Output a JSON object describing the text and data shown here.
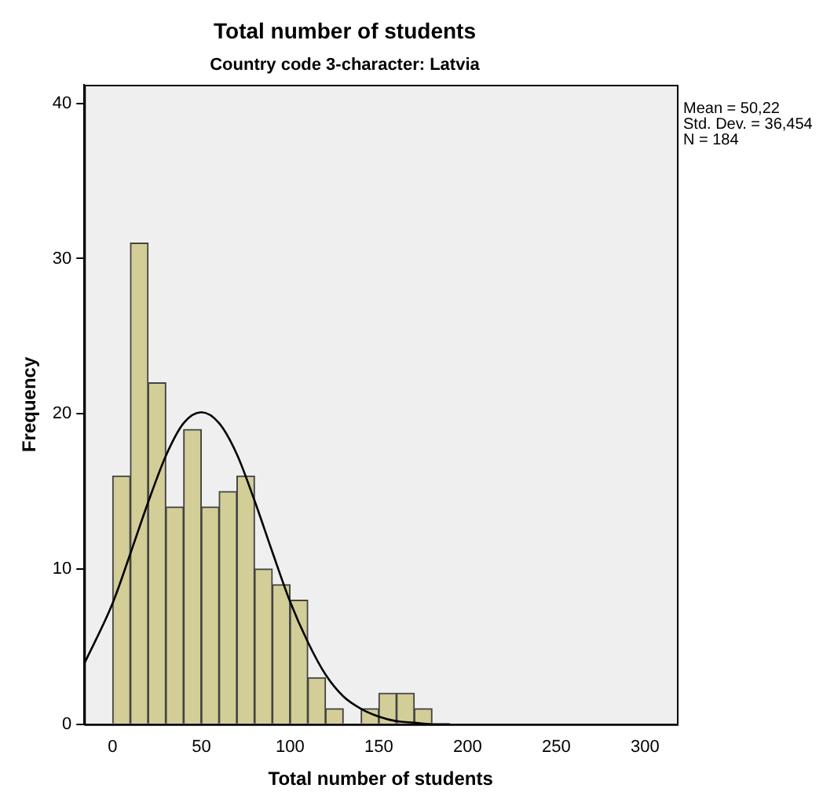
{
  "chart_data": {
    "type": "histogram",
    "title": "Total number of students",
    "subtitle": "Country code 3-character: Latvia",
    "xlabel": "Total number of students",
    "ylabel": "Frequency",
    "bins": [
      0,
      10,
      20,
      30,
      40,
      50,
      60,
      70,
      80,
      90,
      100,
      110,
      120,
      130,
      140,
      150,
      160,
      170,
      180
    ],
    "values": [
      16,
      31,
      22,
      14,
      19,
      14,
      15,
      16,
      10,
      9,
      8,
      3,
      1,
      0,
      1,
      2,
      2,
      1
    ],
    "color": "#d3ce97",
    "series": [
      {
        "type": "line",
        "color": "#000000",
        "marker": "none",
        "x": [
          -16,
          0,
          10,
          20,
          30,
          40,
          50,
          60,
          70,
          80,
          90,
          100,
          110,
          120,
          130,
          140,
          150,
          160,
          170,
          180,
          190
        ],
        "values": [
          3.9,
          7.8,
          11,
          14.3,
          17.3,
          19.4,
          20.1,
          19.4,
          17.4,
          14.4,
          11.1,
          7.9,
          5.3,
          3.2,
          1.8,
          1,
          0.5,
          0.2,
          0.1,
          0,
          0
        ]
      }
    ],
    "xlim": [
      -16,
      318
    ],
    "xticks": [
      0,
      50,
      100,
      150,
      200,
      250,
      300
    ],
    "ylim": [
      0,
      41.2
    ],
    "yticks": [
      0,
      10,
      20,
      30,
      40
    ],
    "grid": false,
    "annotations": [
      "Mean = 50,22",
      "Std. Dev. = 36,454",
      "N = 184"
    ]
  }
}
